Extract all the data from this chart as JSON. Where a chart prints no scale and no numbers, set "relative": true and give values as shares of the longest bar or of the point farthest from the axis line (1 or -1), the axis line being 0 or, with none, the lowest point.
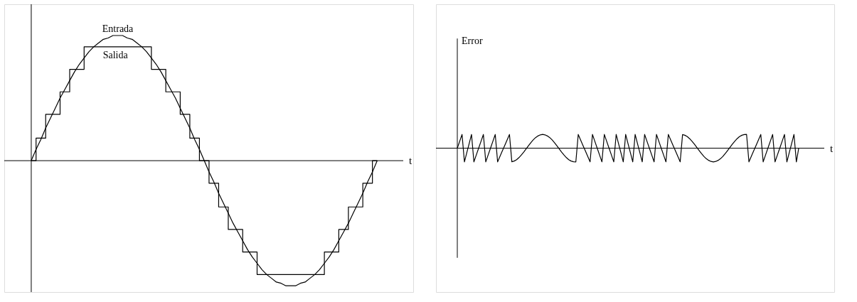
{
  "chart_data": [
    {
      "type": "line",
      "relative": true,
      "xlabel": "t",
      "tick_labels": false,
      "categories": [
        null,
        null,
        null,
        null,
        null,
        null,
        null,
        null,
        null,
        null,
        null,
        null,
        null,
        null,
        null,
        null,
        null,
        null,
        null,
        null,
        null,
        null,
        null,
        null,
        null,
        null,
        null,
        null,
        null,
        null,
        null,
        null,
        null,
        null,
        null,
        null,
        null,
        null,
        null,
        null,
        null,
        null,
        null,
        null,
        null,
        null,
        null,
        null,
        null,
        null,
        null,
        null,
        null,
        null,
        null,
        null,
        null,
        null,
        null,
        null,
        null,
        null,
        null,
        null,
        null,
        null,
        null,
        null,
        null,
        null,
        null,
        null,
        null
      ],
      "series": [
        {
          "name": "Entrada",
          "type": "line",
          "color": "#000000",
          "values": [
            0,
            0.09,
            0.17,
            0.26,
            0.34,
            0.42,
            0.5,
            0.57,
            0.64,
            0.71,
            0.77,
            0.82,
            0.87,
            0.91,
            0.94,
            0.97,
            0.98,
            1,
            1,
            1,
            0.98,
            0.97,
            0.94,
            0.91,
            0.87,
            0.82,
            0.77,
            0.71,
            0.64,
            0.57,
            0.5,
            0.42,
            0.34,
            0.26,
            0.17,
            0.09,
            0,
            -0.09,
            -0.17,
            -0.26,
            -0.34,
            -0.42,
            -0.5,
            -0.57,
            -0.64,
            -0.71,
            -0.77,
            -0.82,
            -0.87,
            -0.91,
            -0.94,
            -0.97,
            -0.98,
            -1,
            -1,
            -1,
            -0.98,
            -0.97,
            -0.94,
            -0.91,
            -0.87,
            -0.82,
            -0.77,
            -0.71,
            -0.64,
            -0.57,
            -0.5,
            -0.42,
            -0.34,
            -0.26,
            -0.17,
            -0.09,
            0
          ]
        },
        {
          "name": "Salida",
          "type": "step",
          "color": "#000000",
          "values": [
            0,
            0.18,
            0.18,
            0.37,
            0.37,
            0.37,
            0.55,
            0.55,
            0.73,
            0.73,
            0.73,
            0.91,
            0.91,
            0.91,
            0.91,
            0.91,
            0.91,
            0.91,
            0.91,
            0.91,
            0.91,
            0.91,
            0.91,
            0.91,
            0.91,
            0.73,
            0.73,
            0.73,
            0.55,
            0.55,
            0.55,
            0.37,
            0.37,
            0.18,
            0.18,
            0,
            0,
            -0.18,
            -0.18,
            -0.37,
            -0.37,
            -0.55,
            -0.55,
            -0.55,
            -0.73,
            -0.73,
            -0.73,
            -0.91,
            -0.91,
            -0.91,
            -0.91,
            -0.91,
            -0.91,
            -0.91,
            -0.91,
            -0.91,
            -0.91,
            -0.91,
            -0.91,
            -0.91,
            -0.91,
            -0.73,
            -0.73,
            -0.73,
            -0.55,
            -0.55,
            -0.37,
            -0.37,
            -0.37,
            -0.18,
            -0.18,
            0,
            0
          ]
        }
      ]
    },
    {
      "type": "line",
      "relative": true,
      "xlabel": "t",
      "ylabel": "Error",
      "tick_labels": false,
      "categories": [
        null,
        null,
        null,
        null,
        null,
        null,
        null,
        null,
        null,
        null,
        null,
        null,
        null,
        null,
        null,
        null,
        null,
        null,
        null,
        null,
        null,
        null,
        null,
        null,
        null,
        null,
        null,
        null,
        null,
        null,
        null,
        null,
        null,
        null,
        null,
        null,
        null,
        null,
        null,
        null,
        null,
        null,
        null,
        null,
        null,
        null,
        null,
        null,
        null,
        null,
        null,
        null,
        null,
        null,
        null,
        null,
        null,
        null,
        null,
        null,
        null,
        null,
        null,
        null,
        null,
        null,
        null,
        null,
        null,
        null,
        null,
        null,
        null,
        null,
        null,
        null,
        null,
        null,
        null,
        null,
        null,
        null,
        null,
        null,
        null,
        null,
        null,
        null,
        null,
        null,
        null,
        null,
        null,
        null,
        null,
        null,
        null,
        null,
        null,
        null,
        null,
        null,
        null,
        null,
        null,
        null,
        null,
        null,
        null,
        null,
        null,
        null,
        null,
        null,
        null,
        null,
        null,
        null,
        null,
        null,
        null,
        null,
        null,
        null,
        null,
        null,
        null,
        null,
        null,
        null,
        null,
        null,
        null,
        null,
        null,
        null,
        null,
        null,
        null,
        null,
        null,
        null,
        null,
        null,
        null
      ],
      "series": [
        {
          "color": "#000000",
          "values": [
            0,
            0.5,
            1,
            -1,
            -0.33,
            0.33,
            1,
            -1,
            -0.5,
            0,
            0.5,
            1,
            -1,
            -0.5,
            0,
            0.5,
            1,
            -1,
            -0.6,
            -0.2,
            0.2,
            0.6,
            1,
            -0.99,
            -0.94,
            -0.84,
            -0.69,
            -0.5,
            -0.29,
            -0.06,
            0.17,
            0.4,
            0.6,
            0.77,
            0.89,
            0.97,
            1,
            0.97,
            0.89,
            0.77,
            0.6,
            0.4,
            0.17,
            -0.06,
            -0.29,
            -0.5,
            -0.69,
            -0.84,
            -0.94,
            -0.99,
            -1,
            1,
            0.6,
            0.2,
            -0.2,
            -0.6,
            -1,
            1,
            0.5,
            0,
            -0.5,
            -1,
            1,
            0.5,
            0,
            -0.5,
            -1,
            1,
            0.33,
            -0.33,
            -1,
            1,
            0.33,
            -0.33,
            -1,
            1,
            0.33,
            -0.33,
            -1,
            1,
            0.5,
            0,
            -0.5,
            -1,
            1,
            0.5,
            0,
            -0.5,
            -1,
            1,
            0.6,
            0.2,
            -0.2,
            -0.6,
            -1,
            0.99,
            0.94,
            0.84,
            0.69,
            0.5,
            0.29,
            0.06,
            -0.17,
            -0.4,
            -0.6,
            -0.77,
            -0.89,
            -0.97,
            -1,
            -0.97,
            -0.89,
            -0.77,
            -0.6,
            -0.4,
            -0.17,
            0.06,
            0.29,
            0.5,
            0.69,
            0.84,
            0.94,
            0.99,
            1,
            -1,
            -0.6,
            -0.2,
            0.2,
            0.6,
            1,
            -1,
            -0.5,
            0,
            0.5,
            1,
            -1,
            -0.5,
            0,
            0.5,
            1,
            -1,
            -0.33,
            0.33,
            1,
            -1,
            0
          ]
        }
      ]
    }
  ]
}
